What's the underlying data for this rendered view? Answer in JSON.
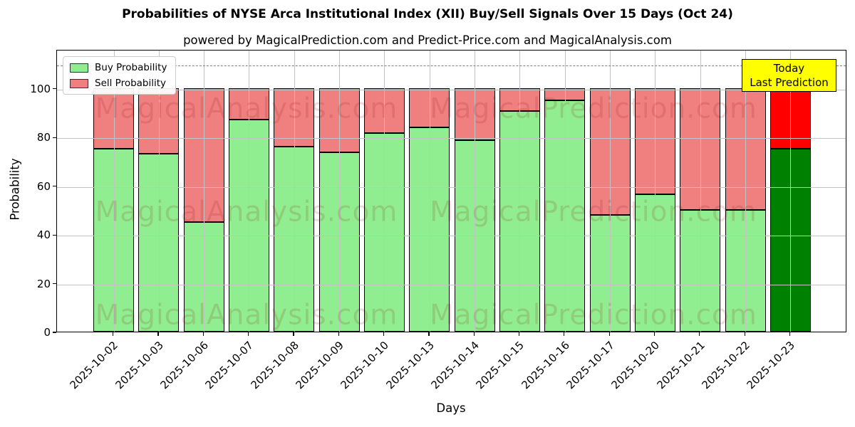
{
  "title": "Probabilities of NYSE Arca Institutional Index (XII) Buy/Sell Signals Over 15 Days (Oct 24)",
  "subtitle": "powered by MagicalPrediction.com and Predict-Price.com and MagicalAnalysis.com",
  "legend": {
    "buy_label": "Buy Probability",
    "sell_label": "Sell Probability"
  },
  "annotation": {
    "line1": "Today",
    "line2": "Last Prediction"
  },
  "axes": {
    "x_label": "Days",
    "y_label": "Probability",
    "y_ticks": [
      0,
      20,
      40,
      60,
      80,
      100
    ],
    "ylim": [
      0,
      116
    ],
    "dashed_line_y": 110,
    "grid": true,
    "x_tick_rotation_deg": 45
  },
  "watermark": {
    "left_text": "MagicalAnalysis.com",
    "right_text": "MagicalPrediction.com"
  },
  "colors": {
    "buy": "#90ee90",
    "sell": "#f08080",
    "today_buy": "#008000",
    "today_sell": "#ff0000",
    "annotation_bg": "#ffff00",
    "dashed_line": "#7f7f7f",
    "grid": "#c3c3c3",
    "bar_edge": "#000000"
  },
  "chart_data": {
    "type": "bar",
    "stacked": true,
    "title": "Probabilities of NYSE Arca Institutional Index (XII) Buy/Sell Signals Over 15 Days (Oct 24)",
    "xlabel": "Days",
    "ylabel": "Probability",
    "ylim": [
      0,
      116
    ],
    "legend_position": "upper left",
    "grid": true,
    "categories": [
      "2025-10-02",
      "2025-10-03",
      "2025-10-06",
      "2025-10-07",
      "2025-10-08",
      "2025-10-09",
      "2025-10-10",
      "2025-10-13",
      "2025-10-14",
      "2025-10-15",
      "2025-10-16",
      "2025-10-17",
      "2025-10-20",
      "2025-10-21",
      "2025-10-22",
      "2025-10-23"
    ],
    "series": [
      {
        "name": "Buy Probability",
        "values": [
          75,
          73,
          45,
          87,
          76,
          73.5,
          81.5,
          84,
          78.5,
          90.5,
          95,
          48,
          56.5,
          50,
          50,
          75
        ]
      },
      {
        "name": "Sell Probability",
        "values": [
          25,
          27,
          55,
          13,
          24,
          26.5,
          18.5,
          16,
          21.5,
          9.5,
          5,
          52,
          43.5,
          50,
          50,
          25
        ]
      }
    ],
    "today_index": 15,
    "dashed_reference_line": 110
  }
}
